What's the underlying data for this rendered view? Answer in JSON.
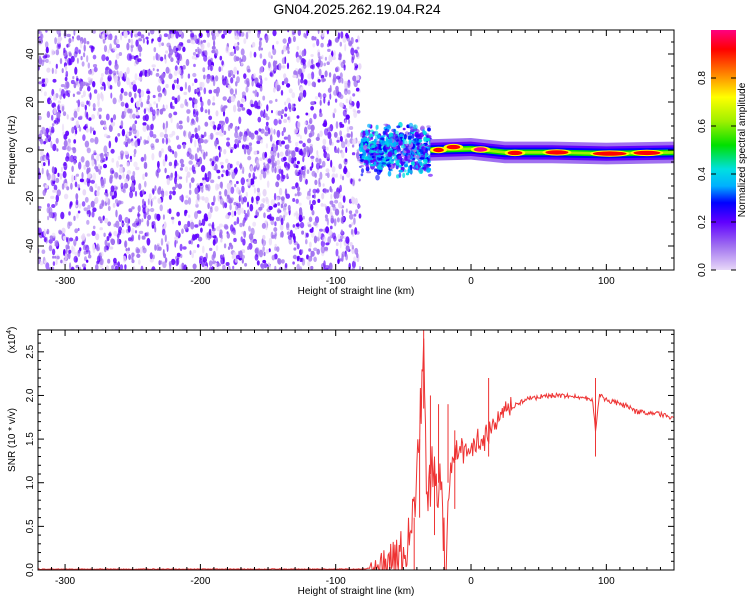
{
  "title": "GN04.2025.262.19.04.R24",
  "chart_data": [
    {
      "type": "heatmap",
      "xlabel": "Height of straight line (km)",
      "ylabel": "Frequency (Hz)",
      "xlim": [
        -320,
        150
      ],
      "ylim": [
        -50,
        50
      ],
      "xticks": [
        -300,
        -200,
        -100,
        0,
        100
      ],
      "yticks": [
        -40,
        -20,
        0,
        20,
        40
      ],
      "colorbar": {
        "label": "Normalized spectral amplitude",
        "range": [
          0.0,
          1.0
        ],
        "ticks": [
          0.0,
          0.2,
          0.4,
          0.6,
          0.8
        ],
        "colors": [
          "#e8d8f8",
          "#a070f0",
          "#6000ff",
          "#0000ff",
          "#00b0ff",
          "#00e0e0",
          "#00e000",
          "#a0f000",
          "#ffff00",
          "#ff8000",
          "#ff0000",
          "#ff0080"
        ]
      },
      "regions": [
        {
          "name": "noise",
          "x": [
            -320,
            -82
          ],
          "freq": [
            -50,
            50
          ],
          "amplitude": [
            0.0,
            0.2
          ]
        },
        {
          "name": "transition",
          "x": [
            -82,
            -30
          ],
          "freq": [
            -12,
            12
          ],
          "amplitude": [
            0.1,
            0.5
          ]
        },
        {
          "name": "carrier",
          "x": [
            -30,
            150
          ],
          "freq": [
            -2,
            3
          ],
          "amplitude": [
            0.3,
            1.0
          ]
        }
      ],
      "carrier_centerline": [
        {
          "x": -30,
          "freq": 0
        },
        {
          "x": 0,
          "freq": 0.5
        },
        {
          "x": 25,
          "freq": -1
        },
        {
          "x": 60,
          "freq": -1
        },
        {
          "x": 100,
          "freq": -1.5
        },
        {
          "x": 150,
          "freq": -1
        }
      ],
      "peak_segments": [
        {
          "x": [
            -28,
            -20
          ],
          "freq": 0,
          "amplitude": 0.9
        },
        {
          "x": [
            -18,
            -8
          ],
          "freq": 1.2,
          "amplitude": 0.9
        },
        {
          "x": [
            2,
            12
          ],
          "freq": 0.2,
          "amplitude": 1.0
        },
        {
          "x": [
            27,
            38
          ],
          "freq": -1.2,
          "amplitude": 0.95
        },
        {
          "x": [
            55,
            72
          ],
          "freq": -1.0,
          "amplitude": 0.9
        },
        {
          "x": [
            90,
            115
          ],
          "freq": -1.5,
          "amplitude": 0.9
        },
        {
          "x": [
            120,
            140
          ],
          "freq": -1.2,
          "amplitude": 0.9
        }
      ]
    },
    {
      "type": "line",
      "xlabel": "Height of straight line (km)",
      "ylabel": "SNR (10 * v/v)",
      "exponent_label": "(x10",
      "exponent_power": "4",
      "exponent_close": ")",
      "xlim": [
        -320,
        150
      ],
      "ylim": [
        0.0,
        2.75
      ],
      "xticks": [
        -300,
        -200,
        -100,
        0,
        100
      ],
      "yticks": [
        0.0,
        0.5,
        1.0,
        1.5,
        2.0,
        2.5
      ],
      "series": [
        {
          "color": "#ee3333",
          "points": [
            [
              -320,
              0.01
            ],
            [
              -120,
              0.01
            ],
            [
              -80,
              0.01
            ],
            [
              -65,
              0.05
            ],
            [
              -55,
              0.15
            ],
            [
              -48,
              0.25
            ],
            [
              -42,
              0.6
            ],
            [
              -38,
              1.5
            ],
            [
              -35,
              2.75
            ],
            [
              -33,
              1.2
            ],
            [
              -30,
              0.8
            ],
            [
              -27,
              1.3
            ],
            [
              -25,
              0.4
            ],
            [
              -23,
              1.0
            ],
            [
              -21,
              0.5
            ],
            [
              -20,
              0.35
            ],
            [
              -19,
              0.1
            ],
            [
              -15,
              1.2
            ],
            [
              -10,
              1.4
            ],
            [
              -5,
              1.35
            ],
            [
              0,
              1.4
            ],
            [
              5,
              1.5
            ],
            [
              10,
              1.5
            ],
            [
              15,
              1.6
            ],
            [
              20,
              1.7
            ],
            [
              25,
              1.78
            ],
            [
              30,
              1.85
            ],
            [
              40,
              1.96
            ],
            [
              60,
              2.0
            ],
            [
              80,
              1.98
            ],
            [
              90,
              1.95
            ],
            [
              92,
              1.6
            ],
            [
              95,
              2.0
            ],
            [
              100,
              1.95
            ],
            [
              110,
              1.9
            ],
            [
              117,
              1.87
            ],
            [
              120,
              1.82
            ],
            [
              130,
              1.8
            ],
            [
              140,
              1.78
            ],
            [
              150,
              1.75
            ]
          ],
          "spikes": [
            {
              "x": -42,
              "y": 0.6
            },
            {
              "x": -38,
              "y": 1.5
            },
            {
              "x": -35,
              "y": 2.75
            },
            {
              "x": -30,
              "y": 2.0
            },
            {
              "x": -27,
              "y": 1.3
            },
            {
              "x": -24,
              "y": 1.9
            },
            {
              "x": -17,
              "y": 1.9
            },
            {
              "x": -12,
              "y": 1.6
            },
            {
              "x": 13,
              "y": 2.2
            },
            {
              "x": 92,
              "y": 2.2
            }
          ]
        }
      ]
    }
  ]
}
